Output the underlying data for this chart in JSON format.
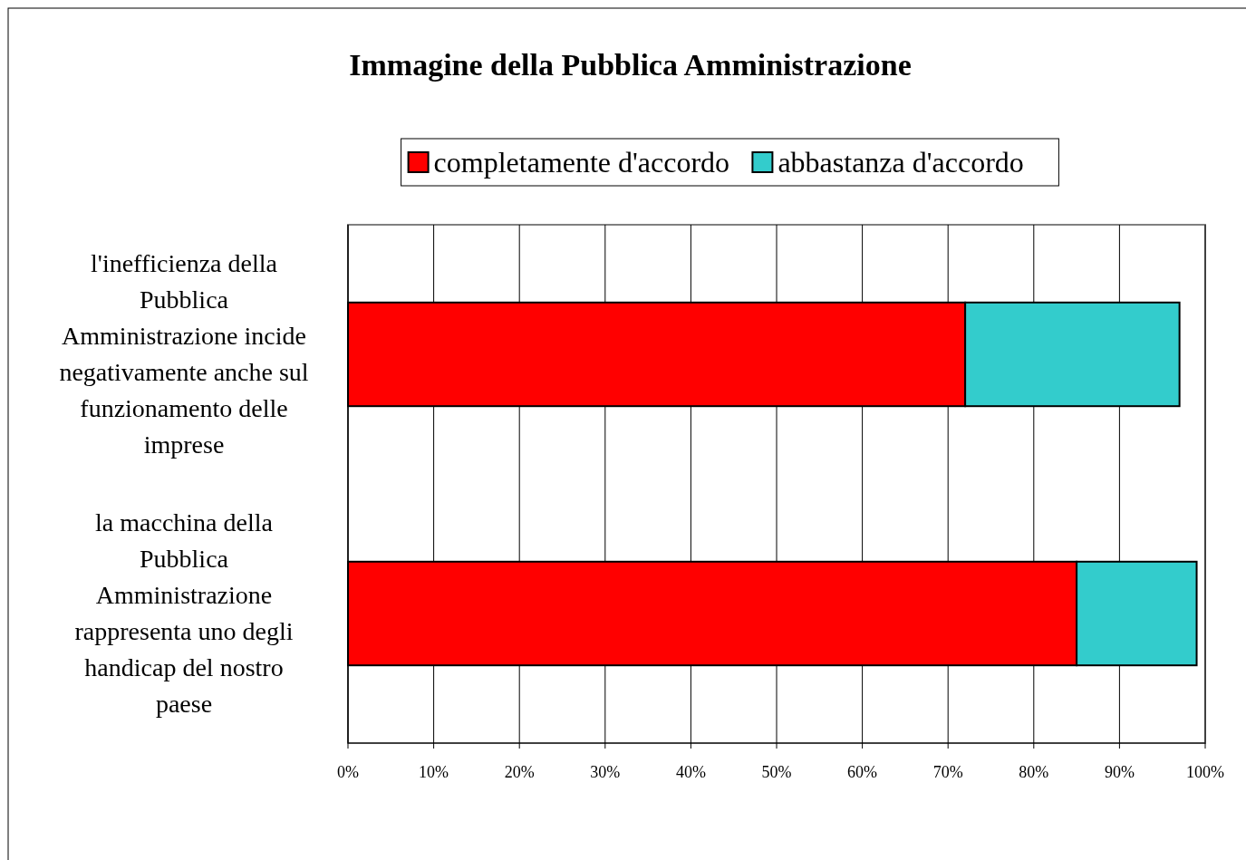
{
  "chart_data": {
    "type": "bar",
    "orientation": "horizontal",
    "stacked": true,
    "title": "Immagine della Pubblica Amministrazione",
    "categories": [
      "l'inefficienza della Pubblica Amministrazione incide negativamente anche sul funzionamento delle imprese",
      "la macchina della Pubblica Amministrazione rappresenta uno degli handicap del nostro paese"
    ],
    "series": [
      {
        "name": "completamente d'accordo",
        "color": "#ff0000",
        "values": [
          72,
          85
        ]
      },
      {
        "name": "abbastanza d'accordo",
        "color": "#33cccc",
        "values": [
          25,
          14
        ]
      }
    ],
    "xlim": [
      0,
      100
    ],
    "xticks": [
      {
        "value": 0,
        "label": "0%"
      },
      {
        "value": 10,
        "label": "10%"
      },
      {
        "value": 20,
        "label": "20%"
      },
      {
        "value": 30,
        "label": "30%"
      },
      {
        "value": 40,
        "label": "40%"
      },
      {
        "value": 50,
        "label": "50%"
      },
      {
        "value": 60,
        "label": "60%"
      },
      {
        "value": 70,
        "label": "70%"
      },
      {
        "value": 80,
        "label": "80%"
      },
      {
        "value": 90,
        "label": "90%"
      },
      {
        "value": 100,
        "label": "100%"
      }
    ],
    "grid": "x",
    "legend": "top"
  }
}
